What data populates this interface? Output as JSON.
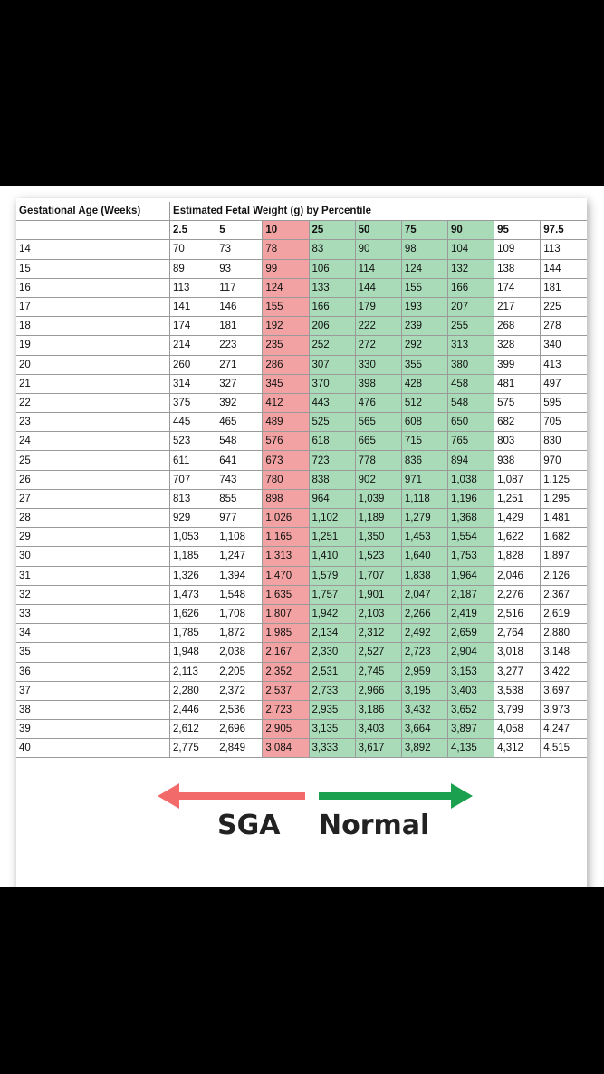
{
  "table": {
    "age_header": "Gestational Age (Weeks)",
    "weight_header": "Estimated Fetal Weight (g) by Percentile",
    "percentiles": [
      "2.5",
      "5",
      "10",
      "25",
      "50",
      "75",
      "90",
      "95",
      "97.5"
    ],
    "rows": [
      {
        "age": "14",
        "values": [
          "70",
          "73",
          "78",
          "83",
          "90",
          "98",
          "104",
          "109",
          "113"
        ]
      },
      {
        "age": "15",
        "values": [
          "89",
          "93",
          "99",
          "106",
          "114",
          "124",
          "132",
          "138",
          "144"
        ]
      },
      {
        "age": "16",
        "values": [
          "113",
          "117",
          "124",
          "133",
          "144",
          "155",
          "166",
          "174",
          "181"
        ]
      },
      {
        "age": "17",
        "values": [
          "141",
          "146",
          "155",
          "166",
          "179",
          "193",
          "207",
          "217",
          "225"
        ]
      },
      {
        "age": "18",
        "values": [
          "174",
          "181",
          "192",
          "206",
          "222",
          "239",
          "255",
          "268",
          "278"
        ]
      },
      {
        "age": "19",
        "values": [
          "214",
          "223",
          "235",
          "252",
          "272",
          "292",
          "313",
          "328",
          "340"
        ]
      },
      {
        "age": "20",
        "values": [
          "260",
          "271",
          "286",
          "307",
          "330",
          "355",
          "380",
          "399",
          "413"
        ]
      },
      {
        "age": "21",
        "values": [
          "314",
          "327",
          "345",
          "370",
          "398",
          "428",
          "458",
          "481",
          "497"
        ]
      },
      {
        "age": "22",
        "values": [
          "375",
          "392",
          "412",
          "443",
          "476",
          "512",
          "548",
          "575",
          "595"
        ]
      },
      {
        "age": "23",
        "values": [
          "445",
          "465",
          "489",
          "525",
          "565",
          "608",
          "650",
          "682",
          "705"
        ]
      },
      {
        "age": "24",
        "values": [
          "523",
          "548",
          "576",
          "618",
          "665",
          "715",
          "765",
          "803",
          "830"
        ]
      },
      {
        "age": "25",
        "values": [
          "611",
          "641",
          "673",
          "723",
          "778",
          "836",
          "894",
          "938",
          "970"
        ]
      },
      {
        "age": "26",
        "values": [
          "707",
          "743",
          "780",
          "838",
          "902",
          "971",
          "1,038",
          "1,087",
          "1,125"
        ]
      },
      {
        "age": "27",
        "values": [
          "813",
          "855",
          "898",
          "964",
          "1,039",
          "1,118",
          "1,196",
          "1,251",
          "1,295"
        ]
      },
      {
        "age": "28",
        "values": [
          "929",
          "977",
          "1,026",
          "1,102",
          "1,189",
          "1,279",
          "1,368",
          "1,429",
          "1,481"
        ]
      },
      {
        "age": "29",
        "values": [
          "1,053",
          "1,108",
          "1,165",
          "1,251",
          "1,350",
          "1,453",
          "1,554",
          "1,622",
          "1,682"
        ]
      },
      {
        "age": "30",
        "values": [
          "1,185",
          "1,247",
          "1,313",
          "1,410",
          "1,523",
          "1,640",
          "1,753",
          "1,828",
          "1,897"
        ]
      },
      {
        "age": "31",
        "values": [
          "1,326",
          "1,394",
          "1,470",
          "1,579",
          "1,707",
          "1,838",
          "1,964",
          "2,046",
          "2,126"
        ]
      },
      {
        "age": "32",
        "values": [
          "1,473",
          "1,548",
          "1,635",
          "1,757",
          "1,901",
          "2,047",
          "2,187",
          "2,276",
          "2,367"
        ]
      },
      {
        "age": "33",
        "values": [
          "1,626",
          "1,708",
          "1,807",
          "1,942",
          "2,103",
          "2,266",
          "2,419",
          "2,516",
          "2,619"
        ]
      },
      {
        "age": "34",
        "values": [
          "1,785",
          "1,872",
          "1,985",
          "2,134",
          "2,312",
          "2,492",
          "2,659",
          "2,764",
          "2,880"
        ]
      },
      {
        "age": "35",
        "values": [
          "1,948",
          "2,038",
          "2,167",
          "2,330",
          "2,527",
          "2,723",
          "2,904",
          "3,018",
          "3,148"
        ]
      },
      {
        "age": "36",
        "values": [
          "2,113",
          "2,205",
          "2,352",
          "2,531",
          "2,745",
          "2,959",
          "3,153",
          "3,277",
          "3,422"
        ]
      },
      {
        "age": "37",
        "values": [
          "2,280",
          "2,372",
          "2,537",
          "2,733",
          "2,966",
          "3,195",
          "3,403",
          "3,538",
          "3,697"
        ]
      },
      {
        "age": "38",
        "values": [
          "2,446",
          "2,536",
          "2,723",
          "2,935",
          "3,186",
          "3,432",
          "3,652",
          "3,799",
          "3,973"
        ]
      },
      {
        "age": "39",
        "values": [
          "2,612",
          "2,696",
          "2,905",
          "3,135",
          "3,403",
          "3,664",
          "3,897",
          "4,058",
          "4,247"
        ]
      },
      {
        "age": "40",
        "values": [
          "2,775",
          "2,849",
          "3,084",
          "3,333",
          "3,617",
          "3,892",
          "4,135",
          "4,312",
          "4,515"
        ]
      }
    ]
  },
  "legend": {
    "sga_label": "SGA",
    "normal_label": "Normal",
    "sga_color": "#f26a6a",
    "normal_color": "#1aa04f"
  },
  "colors": {
    "sga_column": "#f2a2a2",
    "normal_columns": "#a9dbb8"
  }
}
